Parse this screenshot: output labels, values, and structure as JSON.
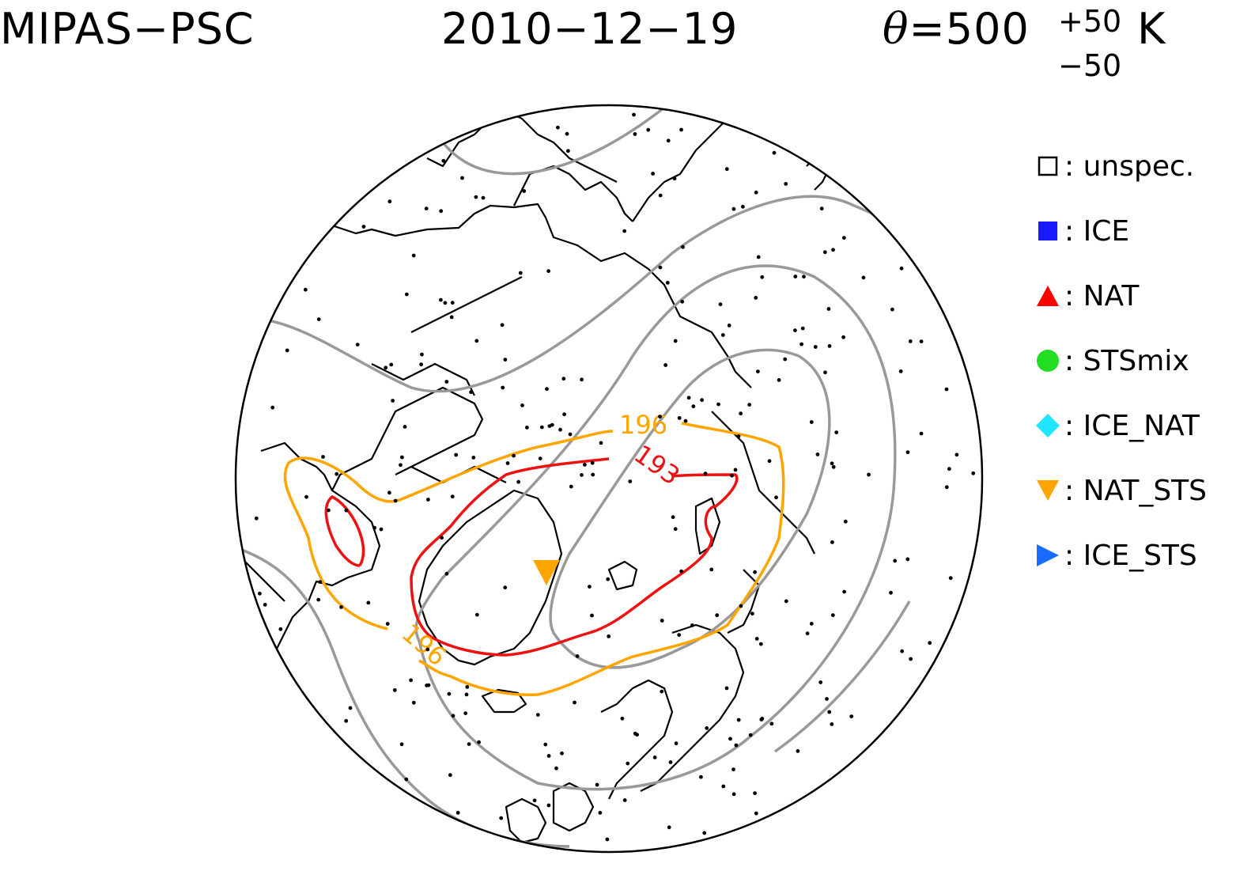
{
  "header": {
    "instrument": "MIPAS−PSC",
    "date": "2010−12−19",
    "theta_symbol": "θ",
    "theta_value": "=500",
    "theta_plus": "+50",
    "theta_minus": "−50",
    "theta_unit": "K"
  },
  "legend": {
    "items": [
      {
        "label": ": unspec.",
        "symbol": "open-square",
        "color": "#000000"
      },
      {
        "label": ": ICE",
        "symbol": "filled-square",
        "color": "#1a1aff"
      },
      {
        "label": ": NAT",
        "symbol": "triangle-up",
        "color": "#ff0000"
      },
      {
        "label": ": STSmix",
        "symbol": "circle",
        "color": "#22dd22"
      },
      {
        "label": ": ICE_NAT",
        "symbol": "diamond",
        "color": "#22e6ff"
      },
      {
        "label": ": NAT_STS",
        "symbol": "triangle-down",
        "color": "#ffa500"
      },
      {
        "label": ": ICE_STS",
        "symbol": "triangle-right",
        "color": "#1a6bff"
      }
    ]
  },
  "contours": {
    "red_label": "193",
    "orange_label_top": "196",
    "orange_label_bottom": "196",
    "colors": {
      "red": "#ee1111",
      "orange": "#ffa500",
      "gray": "#999999"
    }
  }
}
